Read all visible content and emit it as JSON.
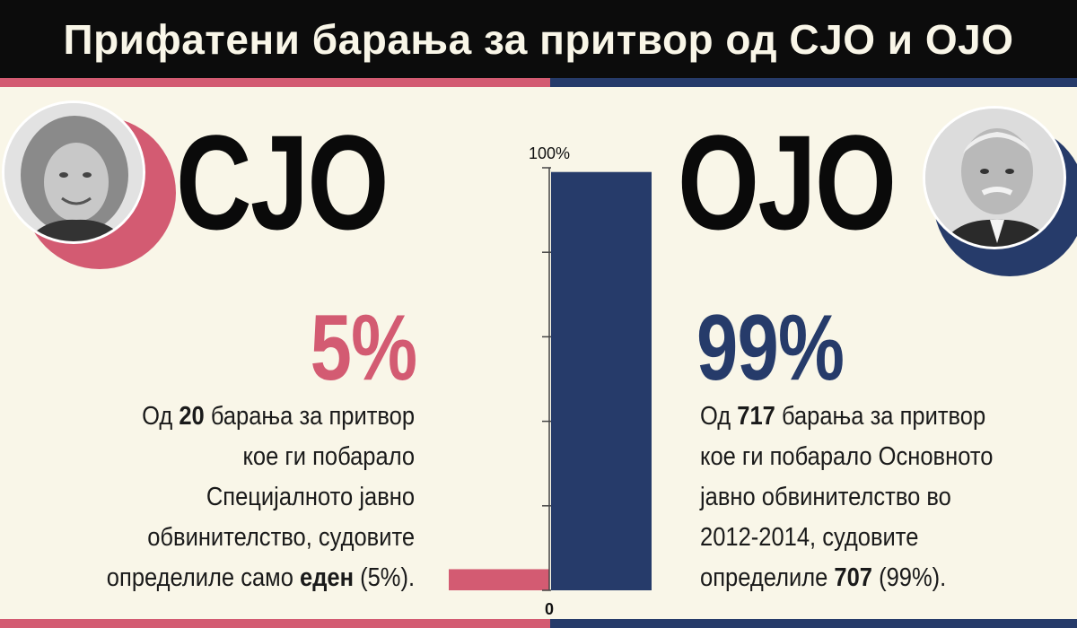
{
  "title": "Прифатени барања за притвор од СЈО и ОЈО",
  "left": {
    "org": "СЈО",
    "pct": "5%",
    "color": "#d35b72",
    "desc": {
      "l1a": "Од ",
      "l1b": "20",
      "l1c": " барања за притвор",
      "l2": "кое ги побарало",
      "l3": "Специјалното јавно",
      "l4": "обвинителство, судовите",
      "l5a": "определиле само ",
      "l5b": "еден",
      "l5c": " (5%)."
    },
    "portrait_icon": "woman-portrait-icon"
  },
  "right": {
    "org": "ОЈО",
    "pct": "99%",
    "color": "#263b6a",
    "desc": {
      "l1a": "Од ",
      "l1b": "717",
      "l1c": " барања за притвор",
      "l2": "кое ги побарало Основното",
      "l3": "јавно обвинителство во",
      "l4": "2012-2014, судовите",
      "l5a": "определиле ",
      "l5b": "707",
      "l5c": " (99%)."
    },
    "portrait_icon": "man-portrait-icon"
  },
  "chart_data": {
    "type": "bar",
    "categories": [
      "СЈО",
      "ОЈО"
    ],
    "values": [
      5,
      99
    ],
    "colors": [
      "#d35b72",
      "#263b6a"
    ],
    "ylim": [
      0,
      100
    ],
    "ticks": [
      0,
      20,
      40,
      60,
      80,
      100
    ],
    "top_label": "100%",
    "bottom_label": "0"
  }
}
